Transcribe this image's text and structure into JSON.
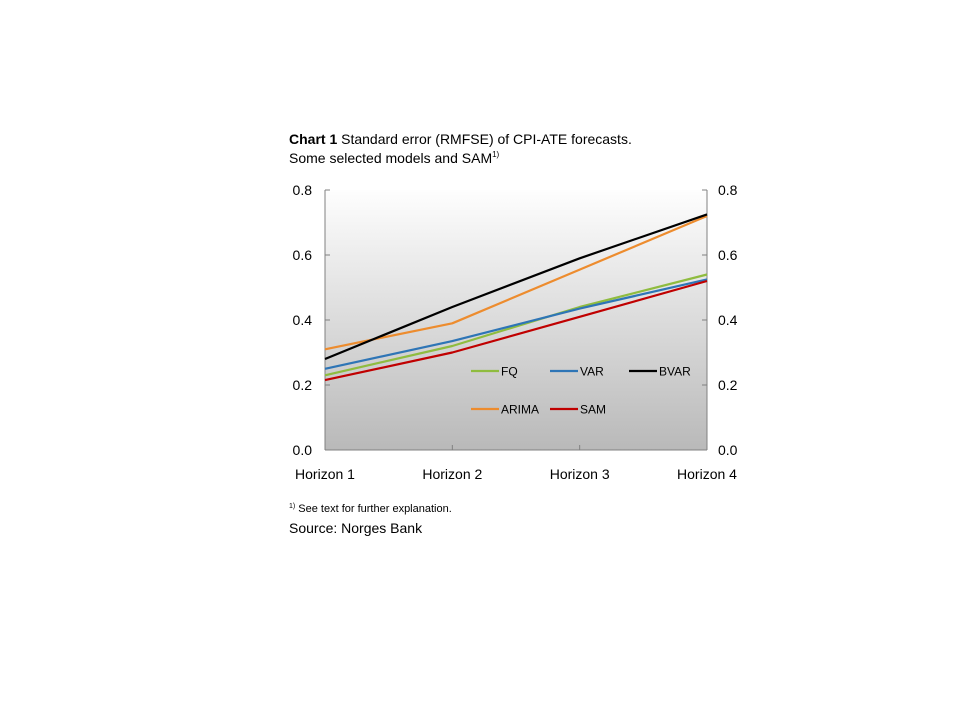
{
  "title": {
    "bold": "Chart 1",
    "text": " Standard error (RMFSE) of CPI-ATE forecasts. Some selected models and SAM",
    "sup": "1)"
  },
  "footnote": {
    "sup": "1)",
    "text": " See text for further explanation."
  },
  "source": "Source: Norges Bank",
  "chart_data": {
    "type": "line",
    "categories": [
      "Horizon 1",
      "Horizon 2",
      "Horizon 3",
      "Horizon 4"
    ],
    "ylim": [
      0.0,
      0.8
    ],
    "yticks": [
      "0.0",
      "0.2",
      "0.4",
      "0.6",
      "0.8"
    ],
    "y_axis_both_sides": true,
    "legend_position": "inside-lower-right",
    "series": [
      {
        "name": "FQ",
        "color": "#8fbc3f",
        "values": [
          0.23,
          0.32,
          0.44,
          0.54
        ]
      },
      {
        "name": "VAR",
        "color": "#2e75b6",
        "values": [
          0.25,
          0.335,
          0.435,
          0.525
        ]
      },
      {
        "name": "BVAR",
        "color": "#000000",
        "values": [
          0.28,
          0.44,
          0.59,
          0.725
        ]
      },
      {
        "name": "ARIMA",
        "color": "#ed8c2e",
        "values": [
          0.31,
          0.39,
          0.555,
          0.72
        ]
      },
      {
        "name": "SAM",
        "color": "#c00000",
        "values": [
          0.215,
          0.3,
          0.41,
          0.52
        ]
      }
    ]
  }
}
